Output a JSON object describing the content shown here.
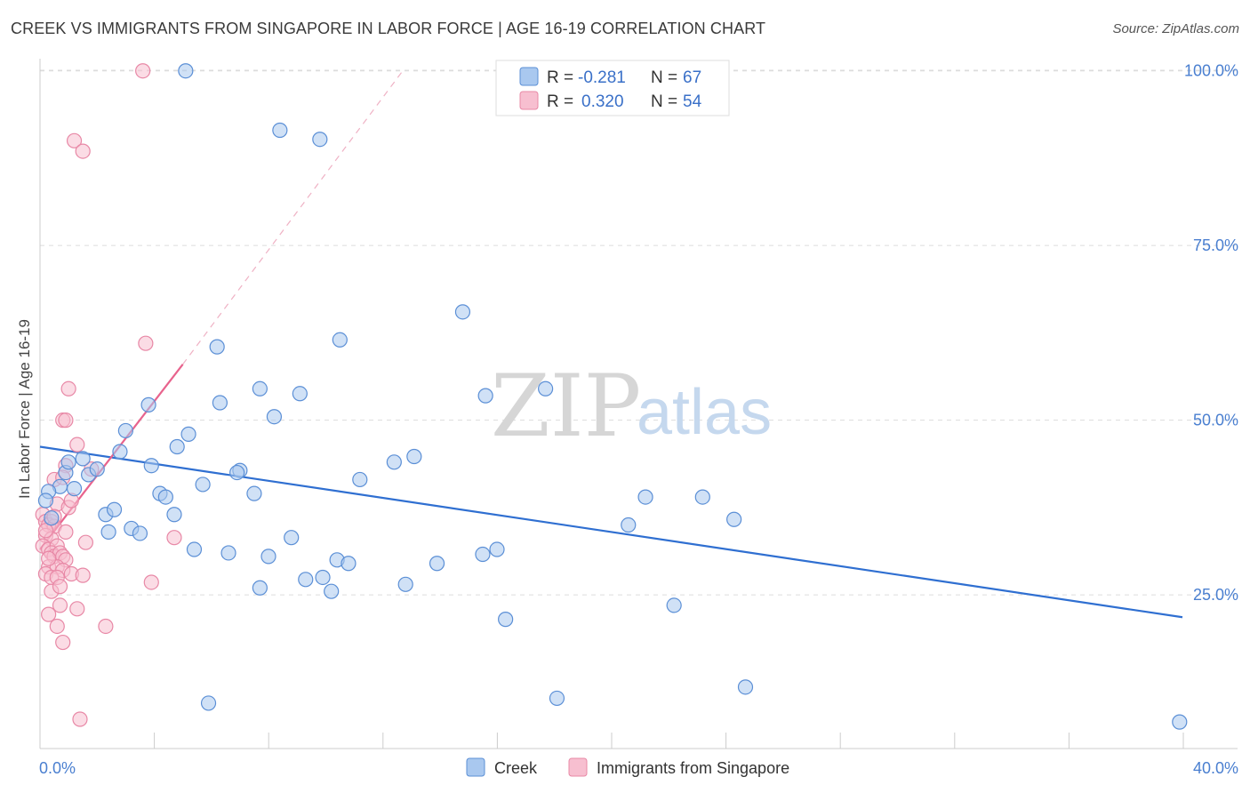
{
  "header": {
    "title": "CREEK VS IMMIGRANTS FROM SINGAPORE IN LABOR FORCE | AGE 16-19 CORRELATION CHART",
    "source": "Source: ZipAtlas.com"
  },
  "colors": {
    "creek_fill": "#a9c8ef",
    "creek_stroke": "#5b8fd6",
    "creek_line": "#2f6fd1",
    "sing_fill": "#f7bfd0",
    "sing_stroke": "#e888a6",
    "sing_line": "#e8638d",
    "tick_text": "#4a7fd0"
  },
  "watermark": {
    "zip": "ZIP",
    "atlas": "atlas"
  },
  "legend": {
    "rows": [
      {
        "r_label": "R =",
        "r_value": "-0.281",
        "n_label": "N =",
        "n_value": "67"
      },
      {
        "r_label": "R =",
        "r_value": "0.320",
        "n_label": "N =",
        "n_value": "54"
      }
    ]
  },
  "bottom_legend": {
    "creek": "Creek",
    "singapore": "Immigrants from Singapore"
  },
  "chart_data": {
    "type": "scatter",
    "title": "CREEK VS IMMIGRANTS FROM SINGAPORE IN LABOR FORCE | AGE 16-19 CORRELATION CHART",
    "xlabel": "",
    "ylabel": "In Labor Force | Age 16-19",
    "xlim": [
      0,
      40
    ],
    "ylim": [
      3,
      102
    ],
    "x_tick_labels": [
      "0.0%",
      "40.0%"
    ],
    "y_ticks": [
      25,
      50,
      75,
      100
    ],
    "y_tick_labels": [
      "25.0%",
      "50.0%",
      "75.0%",
      "100.0%"
    ],
    "grid": true,
    "series": [
      {
        "name": "Creek",
        "r": -0.281,
        "n": 67,
        "trend": {
          "x0": 0,
          "y0": 46.2,
          "x1": 40,
          "y1": 21.8,
          "dashed_after_x": null
        },
        "points": [
          [
            5.1,
            100
          ],
          [
            8.4,
            91.5
          ],
          [
            9.8,
            90.2
          ],
          [
            14.8,
            65.5
          ],
          [
            6.2,
            60.5
          ],
          [
            10.5,
            61.5
          ],
          [
            17.7,
            54.5
          ],
          [
            15.6,
            53.5
          ],
          [
            3.8,
            52.2
          ],
          [
            6.3,
            52.5
          ],
          [
            7.7,
            54.5
          ],
          [
            9.1,
            53.8
          ],
          [
            8.2,
            50.5
          ],
          [
            3.0,
            48.5
          ],
          [
            5.2,
            48.0
          ],
          [
            4.8,
            46.2
          ],
          [
            2.8,
            45.5
          ],
          [
            1.5,
            44.5
          ],
          [
            3.9,
            43.5
          ],
          [
            12.4,
            44.0
          ],
          [
            13.1,
            44.8
          ],
          [
            0.9,
            42.5
          ],
          [
            1.7,
            42.2
          ],
          [
            2.0,
            43.0
          ],
          [
            7.0,
            42.8
          ],
          [
            6.9,
            42.5
          ],
          [
            11.2,
            41.5
          ],
          [
            0.7,
            40.5
          ],
          [
            1.2,
            40.2
          ],
          [
            5.7,
            40.8
          ],
          [
            0.3,
            39.8
          ],
          [
            4.2,
            39.5
          ],
          [
            4.4,
            39.0
          ],
          [
            7.5,
            39.5
          ],
          [
            2.3,
            36.5
          ],
          [
            2.6,
            37.2
          ],
          [
            4.7,
            36.5
          ],
          [
            21.2,
            39.0
          ],
          [
            23.2,
            39.0
          ],
          [
            24.3,
            35.8
          ],
          [
            20.6,
            35.0
          ],
          [
            2.4,
            34.0
          ],
          [
            3.2,
            34.5
          ],
          [
            3.5,
            33.8
          ],
          [
            8.8,
            33.2
          ],
          [
            5.4,
            31.5
          ],
          [
            6.6,
            31.0
          ],
          [
            8.0,
            30.5
          ],
          [
            10.4,
            30.0
          ],
          [
            10.8,
            29.5
          ],
          [
            13.9,
            29.5
          ],
          [
            15.5,
            30.8
          ],
          [
            16.0,
            31.5
          ],
          [
            9.3,
            27.2
          ],
          [
            9.9,
            27.5
          ],
          [
            7.7,
            26.0
          ],
          [
            12.8,
            26.5
          ],
          [
            10.2,
            25.5
          ],
          [
            22.2,
            23.5
          ],
          [
            16.3,
            21.5
          ],
          [
            5.9,
            9.5
          ],
          [
            18.1,
            10.2
          ],
          [
            24.7,
            11.8
          ],
          [
            39.9,
            6.8
          ],
          [
            0.2,
            38.5
          ],
          [
            0.4,
            36.0
          ],
          [
            1.0,
            44.0
          ]
        ]
      },
      {
        "name": "Immigrants from Singapore",
        "r": 0.32,
        "n": 54,
        "trend": {
          "x0": 0,
          "y0": 31.5,
          "x1": 5.0,
          "y1": 58.0,
          "dashed_to_x": 12.7,
          "dashed_to_y": 100
        },
        "points": [
          [
            3.6,
            100
          ],
          [
            1.2,
            90.0
          ],
          [
            1.5,
            88.5
          ],
          [
            3.7,
            61.0
          ],
          [
            1.0,
            54.5
          ],
          [
            0.8,
            50.0
          ],
          [
            0.9,
            50.0
          ],
          [
            1.3,
            46.5
          ],
          [
            0.9,
            43.5
          ],
          [
            1.8,
            43.0
          ],
          [
            0.5,
            41.5
          ],
          [
            0.8,
            41.8
          ],
          [
            0.6,
            38.0
          ],
          [
            1.0,
            37.5
          ],
          [
            0.1,
            36.5
          ],
          [
            0.2,
            35.5
          ],
          [
            0.4,
            35.5
          ],
          [
            0.3,
            35.0
          ],
          [
            0.5,
            34.8
          ],
          [
            0.9,
            34.0
          ],
          [
            0.2,
            33.5
          ],
          [
            0.4,
            33.0
          ],
          [
            0.1,
            32.0
          ],
          [
            0.3,
            31.5
          ],
          [
            0.6,
            32.0
          ],
          [
            1.6,
            32.5
          ],
          [
            4.7,
            33.2
          ],
          [
            0.4,
            31.0
          ],
          [
            0.5,
            30.5
          ],
          [
            0.7,
            31.0
          ],
          [
            0.8,
            30.5
          ],
          [
            0.9,
            30.0
          ],
          [
            0.3,
            29.0
          ],
          [
            0.6,
            29.0
          ],
          [
            0.8,
            28.5
          ],
          [
            0.2,
            28.0
          ],
          [
            0.4,
            27.5
          ],
          [
            0.6,
            27.5
          ],
          [
            1.1,
            28.0
          ],
          [
            1.5,
            27.8
          ],
          [
            3.9,
            26.8
          ],
          [
            0.4,
            25.5
          ],
          [
            0.7,
            23.5
          ],
          [
            1.3,
            23.0
          ],
          [
            0.3,
            22.2
          ],
          [
            0.6,
            20.5
          ],
          [
            2.3,
            20.5
          ],
          [
            0.8,
            18.2
          ],
          [
            1.4,
            7.2
          ],
          [
            0.2,
            34.2
          ],
          [
            0.5,
            36.2
          ],
          [
            1.1,
            38.5
          ],
          [
            0.3,
            30.2
          ],
          [
            0.7,
            26.2
          ]
        ]
      }
    ]
  }
}
